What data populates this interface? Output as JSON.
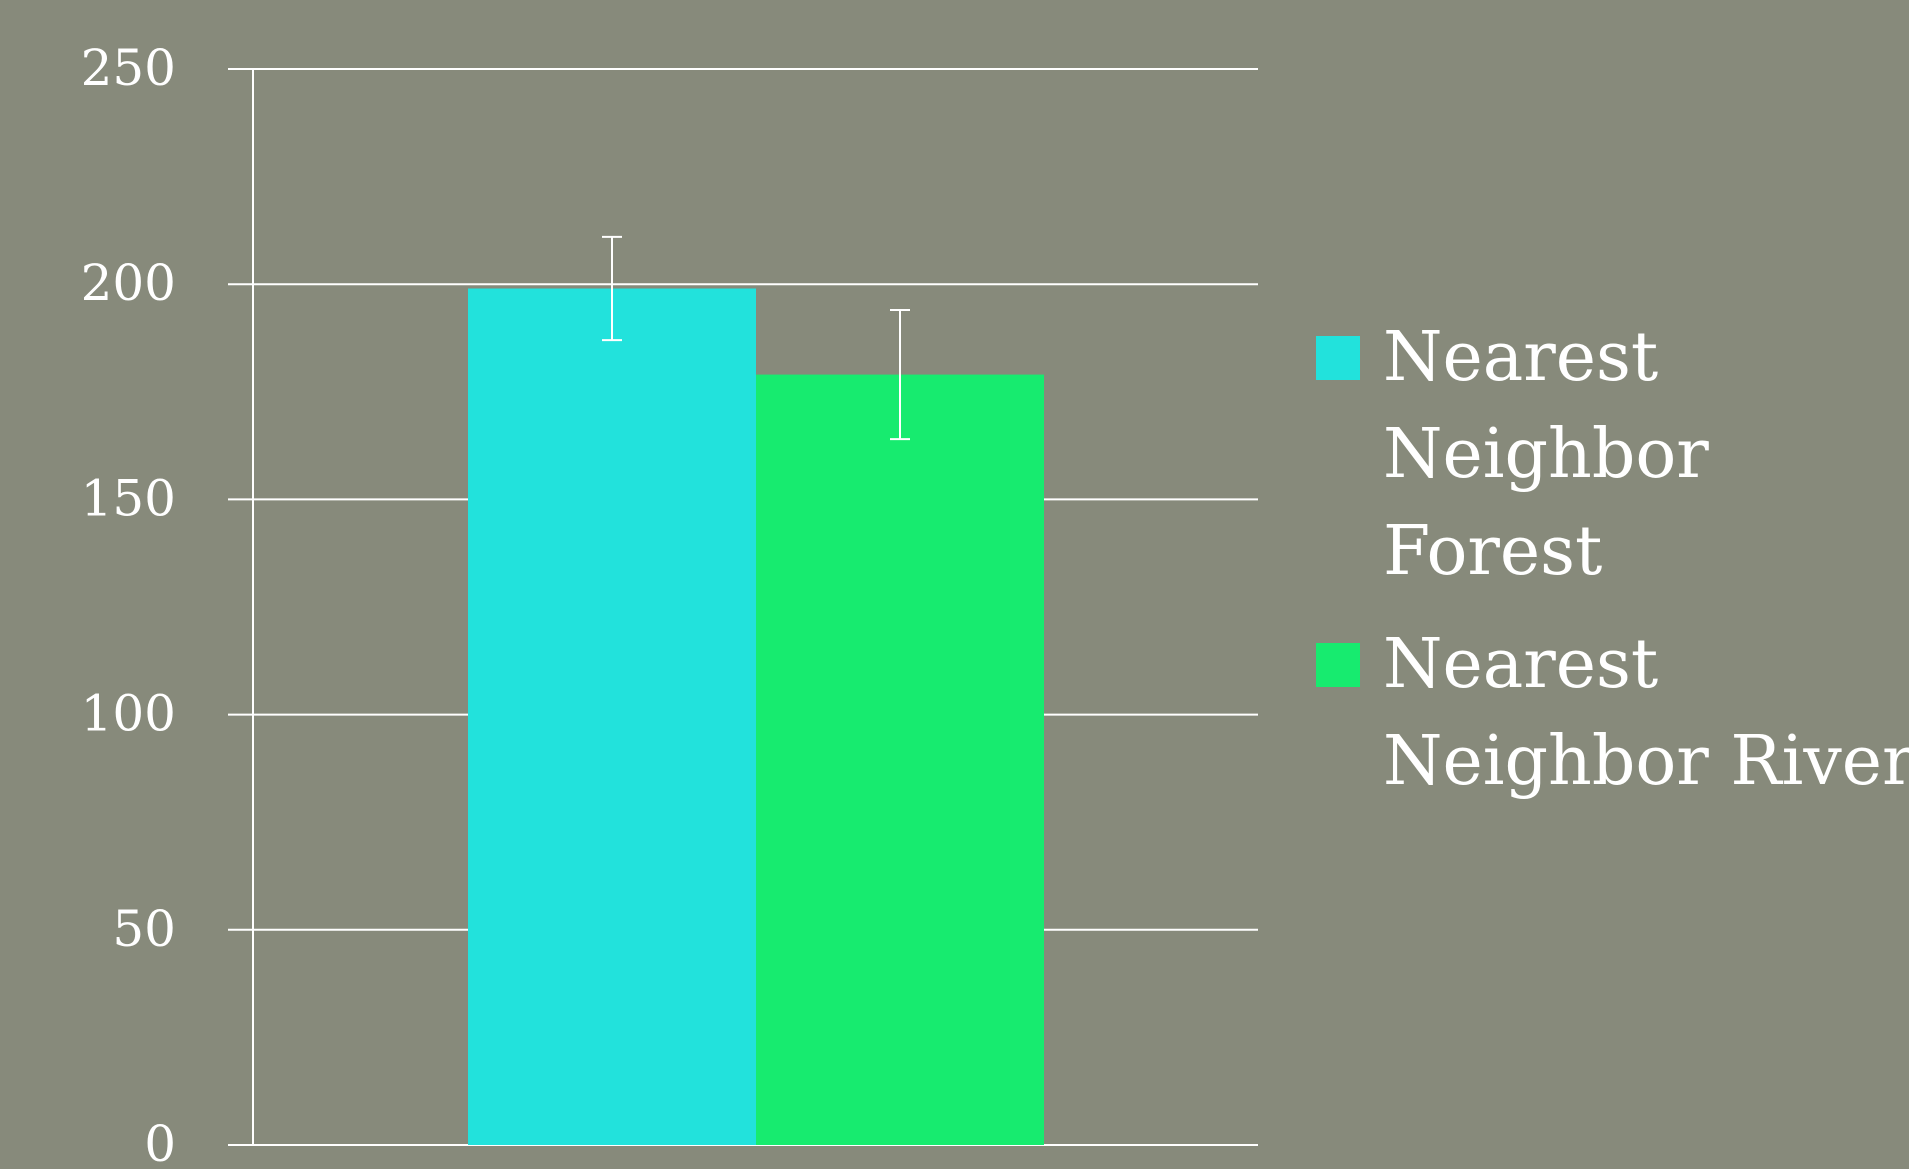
{
  "chart_data": {
    "type": "bar",
    "title": "",
    "xlabel": "",
    "ylabel": "",
    "ylim": [
      0,
      250
    ],
    "yticks": [
      0,
      50,
      100,
      150,
      200,
      250
    ],
    "grid": true,
    "legend_placement": "right",
    "categories": [
      ""
    ],
    "series": [
      {
        "name": "Nearest Neighbor Forest",
        "legend_lines": [
          "Nearest",
          "Neighbor",
          "Forest"
        ],
        "values": [
          199
        ],
        "error": [
          [
            187,
            211
          ]
        ],
        "color": "#22e2dc"
      },
      {
        "name": "Nearest Neighbor River",
        "legend_lines": [
          "Nearest",
          "Neighbor River"
        ],
        "values": [
          179
        ],
        "error": [
          [
            164,
            194
          ]
        ],
        "color": "#17eb6f"
      }
    ]
  },
  "colors": {
    "background": "#878a7b",
    "axis": "#ffffff",
    "text": "#ffffff"
  }
}
